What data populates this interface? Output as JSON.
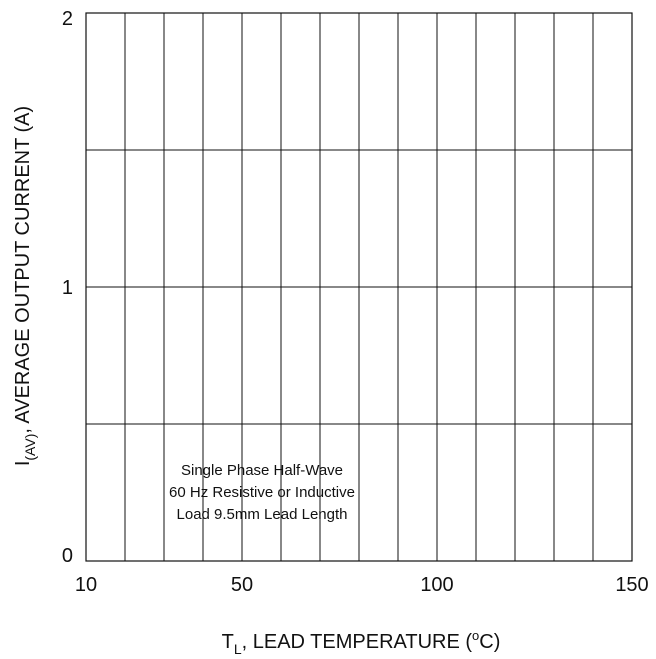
{
  "chart_data": {
    "type": "line",
    "title": "",
    "xlabel": {
      "main": "T",
      "sub": "L",
      "rest": ", LEAD TEMPERATURE (",
      "sup": "o",
      "end": "C)"
    },
    "ylabel": {
      "main": "I",
      "sub": "(AV)",
      "rest": ", AVERAGE OUTPUT CURRENT (A)"
    },
    "xlim": [
      10,
      150
    ],
    "ylim": [
      0,
      2
    ],
    "x_ticks": [
      10,
      50,
      100,
      150
    ],
    "x_tick_labels": [
      "10",
      "50",
      "100",
      "150"
    ],
    "y_ticks": [
      0,
      1,
      2
    ],
    "y_tick_labels": [
      "0",
      "1",
      "2"
    ],
    "x_gridlines": [
      20,
      30,
      40,
      50,
      60,
      70,
      80,
      90,
      100,
      110,
      120,
      130,
      140
    ],
    "y_gridlines": [
      0.5,
      1,
      1.5
    ],
    "grid": true,
    "series": [],
    "annotation": [
      "Single Phase Half-Wave",
      "60 Hz Resistive or Inductive",
      "Load 9.5mm Lead Length"
    ],
    "colors": {
      "grid": "#111111",
      "text": "#111111",
      "background": "#ffffff"
    }
  }
}
